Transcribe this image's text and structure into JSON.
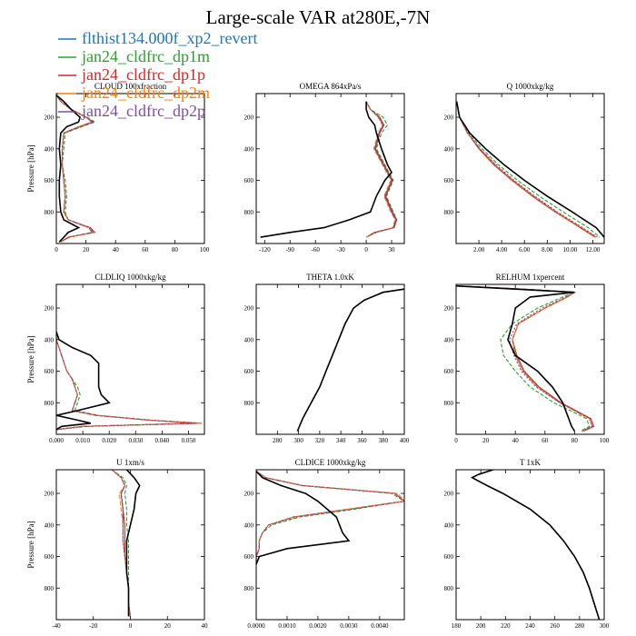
{
  "figure": {
    "title": "Large-scale VAR at280E,-7N"
  },
  "legend": [
    {
      "label": "flthist134.000f_xp2_revert",
      "color": "#1f77b4"
    },
    {
      "label": "jan24_cldfrc_dp1m",
      "color": "#2ca02c"
    },
    {
      "label": "jan24_cldfrc_dp1p",
      "color": "#d62728"
    },
    {
      "label": "jan24_cldfrc_dp2m",
      "color": "#ff7f0e"
    },
    {
      "label": "jan24_cldfrc_dp2p",
      "color": "#7e4ea3"
    }
  ],
  "reference": {
    "color": "#000000"
  },
  "chart_data": [
    {
      "type": "line",
      "title": "CLOUD 100xfraction",
      "ylabel": "Pressure [hPa]",
      "xlim": [
        0,
        100
      ],
      "ylim": [
        1000,
        50
      ],
      "xticks": [
        "0",
        "20",
        "40",
        "60",
        "80",
        "100"
      ],
      "xtick_values": [
        0,
        20,
        40,
        60,
        80,
        100
      ],
      "yticks": [
        "200",
        "400",
        "600",
        "800"
      ],
      "ytick_values": [
        200,
        400,
        600,
        800
      ],
      "y": [
        60,
        100,
        150,
        200,
        230,
        260,
        300,
        400,
        500,
        600,
        700,
        800,
        850,
        900,
        930,
        960,
        990
      ],
      "reference": [
        0,
        5,
        10,
        16,
        15,
        7,
        3,
        2,
        3,
        2,
        2,
        3,
        5,
        15,
        8,
        5,
        2
      ],
      "series": [
        [
          0,
          3,
          10,
          20,
          24,
          15,
          5,
          4,
          4,
          5,
          6,
          5,
          8,
          22,
          25,
          8,
          3
        ],
        [
          0,
          3,
          10,
          21,
          26,
          17,
          6,
          5,
          4,
          6,
          7,
          6,
          8,
          22,
          24,
          8,
          3
        ],
        [
          0,
          3,
          10,
          20,
          25,
          16,
          5,
          4,
          4,
          5,
          6,
          5,
          8,
          23,
          26,
          8,
          3
        ],
        [
          0,
          3,
          10,
          20,
          24,
          15,
          5,
          4,
          4,
          5,
          6,
          5,
          8,
          22,
          25,
          9,
          3
        ],
        [
          0,
          3,
          10,
          20,
          25,
          15,
          5,
          4,
          4,
          5,
          6,
          5,
          8,
          22,
          25,
          8,
          3
        ]
      ]
    },
    {
      "type": "line",
      "title": "OMEGA 864xPa/s",
      "ylabel": "",
      "xlim": [
        -130,
        45
      ],
      "ylim": [
        1000,
        50
      ],
      "xticks": [
        "-120",
        "-90",
        "-60",
        "-30",
        "0",
        "30"
      ],
      "xtick_values": [
        -120,
        -90,
        -60,
        -30,
        0,
        30
      ],
      "yticks": [
        "200",
        "400",
        "600",
        "800"
      ],
      "ytick_values": [
        200,
        400,
        600,
        800
      ],
      "y": [
        100,
        150,
        200,
        250,
        300,
        400,
        500,
        550,
        600,
        700,
        800,
        850,
        900,
        930,
        960
      ],
      "reference": [
        0,
        0,
        3,
        10,
        12,
        18,
        25,
        30,
        22,
        12,
        5,
        -20,
        -50,
        -90,
        -125
      ],
      "series": [
        [
          0,
          5,
          15,
          20,
          15,
          10,
          20,
          25,
          30,
          22,
          30,
          35,
          32,
          10,
          0
        ],
        [
          0,
          5,
          20,
          25,
          18,
          12,
          22,
          27,
          32,
          24,
          32,
          36,
          33,
          12,
          0
        ],
        [
          0,
          5,
          16,
          21,
          16,
          11,
          21,
          26,
          31,
          23,
          31,
          36,
          33,
          11,
          0
        ],
        [
          0,
          5,
          14,
          19,
          14,
          9,
          19,
          24,
          29,
          21,
          29,
          34,
          31,
          9,
          0
        ],
        [
          0,
          5,
          15,
          20,
          15,
          10,
          20,
          25,
          30,
          22,
          30,
          35,
          32,
          10,
          0
        ]
      ]
    },
    {
      "type": "line",
      "title": "Q 1000xkg/kg",
      "ylabel": "",
      "xlim": [
        0,
        13
      ],
      "ylim": [
        1000,
        50
      ],
      "xticks": [
        "2.00",
        "4.00",
        "6.00",
        "8.00",
        "10.00",
        "12.00"
      ],
      "xtick_values": [
        2,
        4,
        6,
        8,
        10,
        12
      ],
      "yticks": [
        "200",
        "400",
        "600",
        "800"
      ],
      "ytick_values": [
        200,
        400,
        600,
        800
      ],
      "y": [
        100,
        200,
        300,
        400,
        500,
        600,
        700,
        800,
        900,
        960
      ],
      "reference": [
        0.05,
        0.3,
        1.2,
        2.6,
        4.2,
        6.0,
        8.0,
        10.2,
        12.3,
        13.0
      ],
      "series": [
        [
          0.05,
          0.3,
          1.0,
          2.1,
          3.4,
          5.0,
          6.8,
          8.8,
          11.0,
          12.3
        ],
        [
          0.05,
          0.3,
          1.1,
          2.3,
          3.7,
          5.4,
          7.3,
          9.4,
          11.6,
          12.6
        ],
        [
          0.05,
          0.3,
          1.0,
          2.0,
          3.3,
          4.9,
          6.7,
          8.7,
          10.9,
          12.2
        ],
        [
          0.05,
          0.3,
          1.0,
          2.1,
          3.4,
          5.0,
          6.8,
          8.8,
          11.0,
          12.3
        ],
        [
          0.05,
          0.3,
          1.0,
          2.1,
          3.5,
          5.1,
          6.9,
          8.9,
          11.1,
          12.4
        ]
      ]
    },
    {
      "type": "line",
      "title": "CLDLIQ 1000xkg/kg",
      "ylabel": "Pressure [hPa]",
      "xlim": [
        0,
        0.056
      ],
      "ylim": [
        1000,
        50
      ],
      "xticks": [
        "0.000",
        "0.010",
        "0.020",
        "0.030",
        "0.040",
        "0.050"
      ],
      "xtick_values": [
        0,
        0.01,
        0.02,
        0.03,
        0.04,
        0.05
      ],
      "yticks": [
        "200",
        "400",
        "600",
        "800"
      ],
      "ytick_values": [
        200,
        400,
        600,
        800
      ],
      "y": [
        350,
        400,
        450,
        500,
        550,
        600,
        650,
        700,
        750,
        800,
        850,
        880,
        910,
        930,
        950,
        970
      ],
      "reference": [
        0,
        0.001,
        0.006,
        0.013,
        0.016,
        0.016,
        0.016,
        0.016,
        0.017,
        0.02,
        0.008,
        0.0,
        0.008,
        0.013,
        0.002,
        0
      ],
      "series": [
        [
          0,
          0,
          0.001,
          0.002,
          0.003,
          0.004,
          0.006,
          0.007,
          0.008,
          0.007,
          0.006,
          0.015,
          0.035,
          0.055,
          0.01,
          0
        ],
        [
          0,
          0,
          0.001,
          0.002,
          0.003,
          0.004,
          0.006,
          0.008,
          0.009,
          0.008,
          0.007,
          0.016,
          0.036,
          0.05,
          0.012,
          0
        ],
        [
          0,
          0,
          0.001,
          0.002,
          0.003,
          0.004,
          0.006,
          0.007,
          0.008,
          0.007,
          0.006,
          0.015,
          0.035,
          0.054,
          0.01,
          0
        ],
        [
          0,
          0,
          0.001,
          0.002,
          0.003,
          0.004,
          0.006,
          0.007,
          0.008,
          0.007,
          0.006,
          0.015,
          0.035,
          0.055,
          0.01,
          0
        ],
        [
          0,
          0,
          0.001,
          0.002,
          0.003,
          0.004,
          0.006,
          0.007,
          0.008,
          0.007,
          0.006,
          0.015,
          0.035,
          0.053,
          0.01,
          0
        ]
      ]
    },
    {
      "type": "line",
      "title": "THETA 1.0xK",
      "ylabel": "",
      "xlim": [
        260,
        400
      ],
      "ylim": [
        1000,
        50
      ],
      "xticks": [
        "280",
        "300",
        "320",
        "340",
        "360",
        "380",
        "400"
      ],
      "xtick_values": [
        280,
        300,
        320,
        340,
        360,
        380,
        400
      ],
      "yticks": [
        "200",
        "400",
        "600",
        "800"
      ],
      "ytick_values": [
        200,
        400,
        600,
        800
      ],
      "y": [
        80,
        100,
        150,
        200,
        300,
        400,
        500,
        600,
        700,
        800,
        900,
        980
      ],
      "reference": [
        400,
        380,
        362,
        352,
        344,
        338,
        332,
        326,
        320,
        312,
        304,
        299
      ],
      "series": [
        [
          400,
          380,
          362,
          352,
          344,
          338,
          332,
          326,
          320,
          312,
          304,
          299
        ],
        [
          400,
          380,
          362,
          352,
          344,
          338,
          332,
          326,
          320,
          312,
          304,
          299
        ],
        [
          400,
          380,
          362,
          352,
          344,
          338,
          332,
          326,
          320,
          312,
          304,
          299
        ],
        [
          400,
          380,
          362,
          352,
          344,
          338,
          332,
          326,
          320,
          312,
          304,
          299
        ],
        [
          400,
          380,
          362,
          352,
          344,
          338,
          332,
          326,
          320,
          312,
          304,
          299
        ]
      ]
    },
    {
      "type": "line",
      "title": "RELHUM 1xpercent",
      "ylabel": "",
      "xlim": [
        0,
        100
      ],
      "ylim": [
        1000,
        50
      ],
      "xticks": [
        "0",
        "20",
        "40",
        "60",
        "80",
        "100"
      ],
      "xtick_values": [
        0,
        20,
        40,
        60,
        80,
        100
      ],
      "yticks": [
        "200",
        "400",
        "600",
        "800"
      ],
      "ytick_values": [
        200,
        400,
        600,
        800
      ],
      "y": [
        60,
        80,
        100,
        130,
        200,
        300,
        400,
        500,
        600,
        700,
        800,
        900,
        950,
        980
      ],
      "reference": [
        0,
        40,
        80,
        50,
        40,
        38,
        35,
        40,
        55,
        65,
        72,
        76,
        78,
        80
      ],
      "series": [
        [
          0,
          45,
          80,
          75,
          60,
          42,
          38,
          40,
          45,
          55,
          70,
          90,
          92,
          85
        ],
        [
          0,
          45,
          80,
          72,
          55,
          38,
          30,
          32,
          40,
          50,
          66,
          88,
          90,
          84
        ],
        [
          0,
          45,
          80,
          75,
          60,
          42,
          38,
          41,
          46,
          56,
          71,
          91,
          93,
          86
        ],
        [
          0,
          45,
          80,
          75,
          60,
          42,
          38,
          40,
          45,
          55,
          70,
          90,
          92,
          85
        ],
        [
          0,
          45,
          80,
          74,
          58,
          41,
          36,
          39,
          44,
          54,
          70,
          90,
          92,
          85
        ]
      ]
    },
    {
      "type": "line",
      "title": "U 1xm/s",
      "ylabel": "Pressure [hPa]",
      "xlim": [
        -40,
        40
      ],
      "ylim": [
        1000,
        50
      ],
      "xticks": [
        "-40",
        "-20",
        "0",
        "20",
        "40"
      ],
      "xtick_values": [
        -40,
        -20,
        0,
        20,
        40
      ],
      "yticks": [
        "200",
        "400",
        "600",
        "800"
      ],
      "ytick_values": [
        200,
        400,
        600,
        800
      ],
      "y": [
        50,
        100,
        150,
        200,
        300,
        400,
        500,
        600,
        700,
        800,
        900,
        980
      ],
      "reference": [
        -2,
        2,
        5,
        3,
        2,
        0,
        -2,
        -2,
        -2,
        -1,
        -1,
        -1
      ],
      "series": [
        [
          -10,
          -5,
          -3,
          -5,
          -4,
          -4,
          -4,
          -3,
          -2,
          -1,
          -1,
          0
        ],
        [
          -10,
          -4,
          -2,
          -3,
          -2,
          -2,
          -1,
          -1,
          -1,
          -1,
          -1,
          0
        ],
        [
          -10,
          -5,
          -3,
          -5,
          -4,
          -3,
          -3,
          -3,
          -2,
          -1,
          -1,
          0
        ],
        [
          -10,
          -5,
          -3,
          -6,
          -5,
          -4,
          -4,
          -3,
          -2,
          -1,
          -1,
          0
        ],
        [
          -10,
          -5,
          -3,
          -5,
          -4,
          -4,
          -4,
          -3,
          -2,
          -1,
          -1,
          0
        ]
      ]
    },
    {
      "type": "line",
      "title": "CLDICE 1000xkg/kg",
      "ylabel": "",
      "xlim": [
        0,
        0.0048
      ],
      "ylim": [
        1000,
        50
      ],
      "xticks": [
        "0.0000",
        "0.0010",
        "0.0020",
        "0.0030",
        "0.0040"
      ],
      "xtick_values": [
        0,
        0.001,
        0.002,
        0.003,
        0.004
      ],
      "yticks": [
        "200",
        "400",
        "600",
        "800"
      ],
      "ytick_values": [
        200,
        400,
        600,
        800
      ],
      "y": [
        60,
        100,
        150,
        200,
        250,
        300,
        350,
        400,
        450,
        500,
        550,
        600,
        650
      ],
      "reference": [
        0,
        0.0002,
        0.0008,
        0.0016,
        0.002,
        0.0023,
        0.0026,
        0.0027,
        0.0028,
        0.003,
        0.001,
        0.0001,
        0
      ],
      "series": [
        [
          0,
          0.0003,
          0.0015,
          0.0045,
          0.0048,
          0.003,
          0.0012,
          0.0004,
          0.0002,
          0.0001,
          0.0001,
          0,
          0
        ],
        [
          0,
          0.0003,
          0.0015,
          0.0044,
          0.0048,
          0.0032,
          0.0014,
          0.0005,
          0.0002,
          0.0001,
          0.0001,
          0,
          0
        ],
        [
          0,
          0.0003,
          0.0015,
          0.0045,
          0.0048,
          0.003,
          0.0012,
          0.0004,
          0.0002,
          0.0001,
          0.0001,
          0,
          0
        ],
        [
          0,
          0.0003,
          0.0015,
          0.0046,
          0.0048,
          0.003,
          0.0012,
          0.0004,
          0.0002,
          0.0001,
          0.0001,
          0,
          0
        ],
        [
          0,
          0.0003,
          0.0015,
          0.0045,
          0.0048,
          0.0031,
          0.0013,
          0.0004,
          0.0002,
          0.0001,
          0.0001,
          0,
          0
        ]
      ]
    },
    {
      "type": "line",
      "title": "T 1xK",
      "ylabel": "",
      "xlim": [
        180,
        300
      ],
      "ylim": [
        1000,
        50
      ],
      "xticks": [
        "180",
        "200",
        "220",
        "240",
        "260",
        "280",
        "300"
      ],
      "xtick_values": [
        180,
        200,
        220,
        240,
        260,
        280,
        300
      ],
      "yticks": [
        "200",
        "400",
        "600",
        "800"
      ],
      "ytick_values": [
        200,
        400,
        600,
        800
      ],
      "y": [
        50,
        80,
        100,
        150,
        200,
        300,
        400,
        500,
        600,
        700,
        800,
        900,
        1000
      ],
      "reference": [
        210,
        198,
        193,
        205,
        218,
        240,
        256,
        267,
        276,
        283,
        288,
        292,
        296
      ],
      "series": [
        [
          210,
          198,
          193,
          205,
          218,
          240,
          256,
          267,
          276,
          283,
          288,
          292,
          296
        ],
        [
          210,
          198,
          193,
          205,
          218,
          240,
          256,
          267,
          276,
          283,
          288,
          292,
          296
        ],
        [
          210,
          198,
          193,
          205,
          218,
          240,
          256,
          267,
          276,
          283,
          288,
          292,
          296
        ],
        [
          210,
          198,
          193,
          205,
          218,
          240,
          256,
          267,
          276,
          283,
          288,
          292,
          296
        ],
        [
          210,
          198,
          193,
          205,
          218,
          240,
          256,
          267,
          276,
          283,
          288,
          292,
          296
        ]
      ]
    }
  ]
}
